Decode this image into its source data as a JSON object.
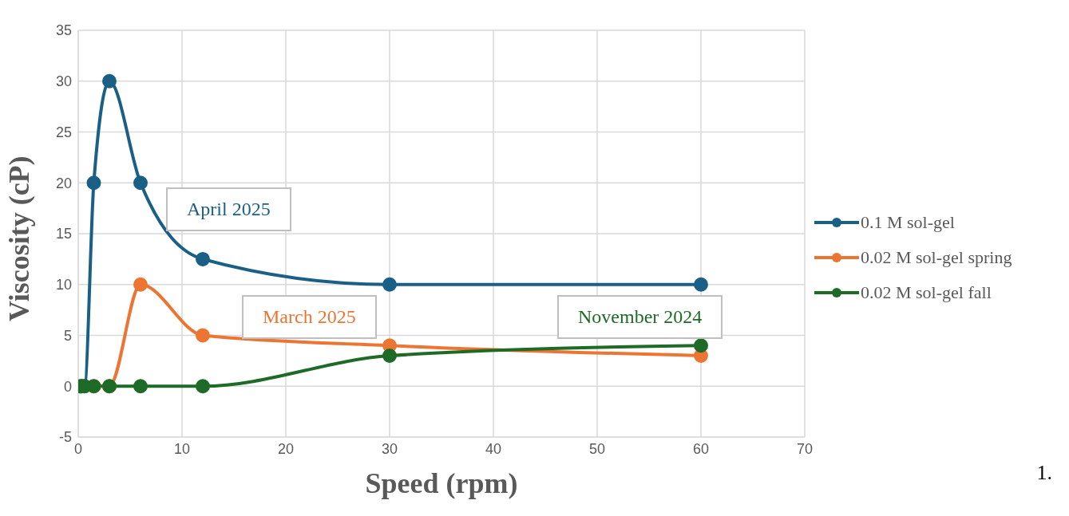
{
  "chart_data": {
    "type": "line",
    "xlabel": "Speed (rpm)",
    "ylabel": "Viscosity (cP)",
    "x": [
      0.3,
      0.6,
      1.5,
      3,
      6,
      12,
      30,
      60
    ],
    "series": [
      {
        "name": "0.1 M sol-gel",
        "color": "#1a5f85",
        "values": [
          0,
          0,
          20,
          30,
          20,
          12.5,
          10,
          10
        ]
      },
      {
        "name": "0.02 M sol-gel spring",
        "color": "#ec7533",
        "values": [
          null,
          null,
          0,
          0,
          10,
          5,
          4,
          3
        ]
      },
      {
        "name": "0.02 M sol-gel fall",
        "color": "#1d6b26",
        "values": [
          0,
          0,
          0,
          0,
          0,
          0,
          3,
          4
        ]
      }
    ],
    "xlim": [
      0,
      70
    ],
    "xticks": [
      0,
      10,
      20,
      30,
      40,
      50,
      60,
      70
    ],
    "ylim": [
      -5,
      35
    ],
    "yticks": [
      -5,
      0,
      5,
      10,
      15,
      20,
      25,
      30,
      35
    ],
    "grid": true,
    "legend": "right",
    "marker": "circle",
    "line_style": "solid",
    "annotations": [
      "April 2025",
      "March 2025",
      "November 2024",
      "1."
    ]
  }
}
